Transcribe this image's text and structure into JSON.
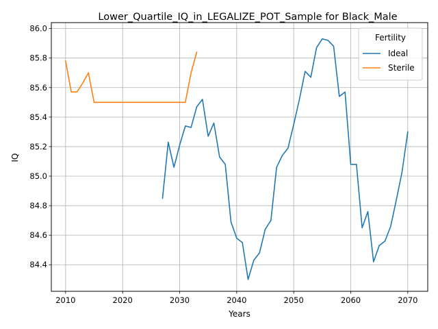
{
  "chart_data": {
    "type": "line",
    "title": "Lower_Quartile_IQ_in_LEGALIZE_POT_Sample for Black_Male",
    "xlabel": "Years",
    "ylabel": "IQ",
    "xlim": [
      2007.5,
      2073.5
    ],
    "ylim": [
      84.22,
      86.04
    ],
    "x_ticks": [
      2010,
      2020,
      2030,
      2040,
      2050,
      2060,
      2070
    ],
    "y_ticks": [
      84.4,
      84.6,
      84.8,
      85.0,
      85.2,
      85.4,
      85.6,
      85.8,
      86.0
    ],
    "x_tick_labels": [
      "2010",
      "2020",
      "2030",
      "2040",
      "2050",
      "2060",
      "2070"
    ],
    "y_tick_labels": [
      "84.4",
      "84.6",
      "84.8",
      "85.0",
      "85.2",
      "85.4",
      "85.6",
      "85.8",
      "86.0"
    ],
    "grid": true,
    "legend": {
      "title": "Fertility",
      "position": "top-right"
    },
    "series": [
      {
        "name": "Ideal",
        "color": "#1f77b4",
        "x": [
          2027,
          2028,
          2029,
          2030,
          2031,
          2032,
          2033,
          2034,
          2035,
          2036,
          2037,
          2038,
          2039,
          2040,
          2041,
          2042,
          2043,
          2044,
          2045,
          2046,
          2047,
          2048,
          2049,
          2050,
          2051,
          2052,
          2053,
          2054,
          2055,
          2056,
          2057,
          2058,
          2059,
          2060,
          2061,
          2062,
          2063,
          2064,
          2065,
          2066,
          2067,
          2068,
          2069,
          2070
        ],
        "y": [
          84.85,
          85.23,
          85.06,
          85.21,
          85.34,
          85.33,
          85.47,
          85.52,
          85.27,
          85.36,
          85.13,
          85.08,
          84.69,
          84.58,
          84.55,
          84.3,
          84.43,
          84.48,
          84.64,
          84.7,
          85.06,
          85.14,
          85.19,
          85.35,
          85.52,
          85.71,
          85.67,
          85.87,
          85.93,
          85.92,
          85.88,
          85.54,
          85.57,
          85.08,
          85.08,
          84.65,
          84.76,
          84.42,
          84.53,
          84.56,
          84.66,
          84.84,
          85.03,
          85.3
        ]
      },
      {
        "name": "Sterile",
        "color": "#ff7f0e",
        "x": [
          2010,
          2011,
          2012,
          2013,
          2014,
          2015,
          2016,
          2017,
          2018,
          2019,
          2020,
          2021,
          2022,
          2023,
          2024,
          2025,
          2026,
          2027,
          2028,
          2029,
          2030,
          2031,
          2032,
          2033
        ],
        "y": [
          85.78,
          85.57,
          85.57,
          85.63,
          85.7,
          85.5,
          85.5,
          85.5,
          85.5,
          85.5,
          85.5,
          85.5,
          85.5,
          85.5,
          85.5,
          85.5,
          85.5,
          85.5,
          85.5,
          85.5,
          85.5,
          85.5,
          85.7,
          85.84
        ]
      }
    ]
  }
}
